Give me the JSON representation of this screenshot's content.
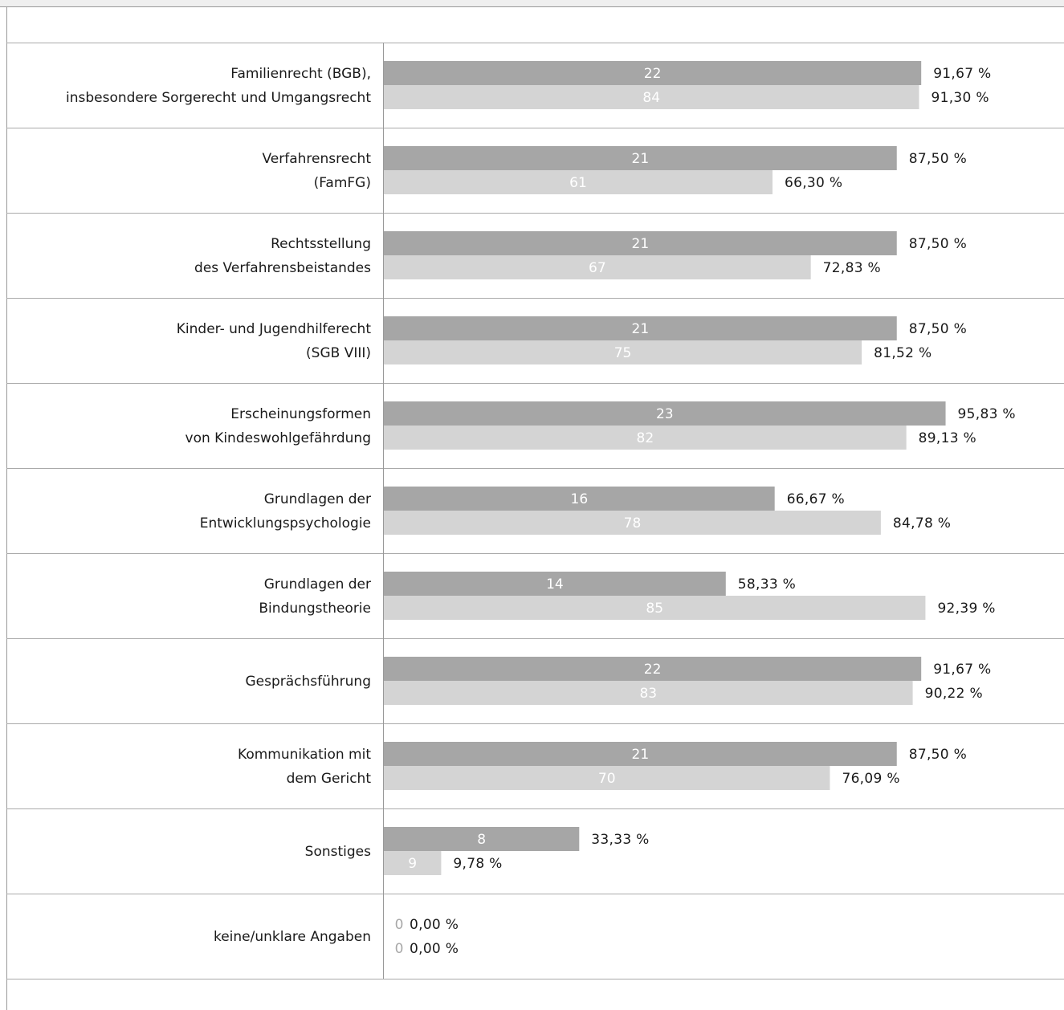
{
  "colors": {
    "series_1": "#a6a6a6",
    "series_2": "#d4d4d4",
    "frame_line": "#999999",
    "row_line": "#aaaaaa",
    "top_band": "#efefef"
  },
  "chart_data": {
    "type": "bar",
    "orientation": "horizontal",
    "title": "",
    "xlabel": "",
    "ylabel": "",
    "xlim": [
      0,
      100
    ],
    "grid": false,
    "legend": "none",
    "categories": [
      [
        "Familienrecht (BGB),",
        "insbesondere Sorgerecht und Umgangsrecht"
      ],
      [
        "Verfahrensrecht",
        "(FamFG)"
      ],
      [
        "Rechtsstellung",
        "des Verfahrensbeistandes"
      ],
      [
        "Kinder- und Jugendhilferecht",
        "(SGB VIII)"
      ],
      [
        "Erscheinungsformen",
        "von Kindeswohlgefährdung"
      ],
      [
        "Grundlagen der",
        "Entwicklungspsychologie"
      ],
      [
        "Grundlagen der",
        "Bindungstheorie"
      ],
      [
        "Gesprächsführung"
      ],
      [
        "Kommunikation mit",
        "dem Gericht"
      ],
      [
        "Sonstiges"
      ],
      [
        "keine/unklare Angaben"
      ]
    ],
    "series": [
      {
        "counts": [
          22,
          21,
          21,
          21,
          23,
          16,
          14,
          22,
          21,
          8,
          0
        ],
        "values": [
          91.67,
          87.5,
          87.5,
          87.5,
          95.83,
          66.67,
          58.33,
          91.67,
          87.5,
          33.33,
          0
        ],
        "value_labels": [
          "91,67 %",
          "87,50 %",
          "87,50 %",
          "87,50 %",
          "95,83 %",
          "66,67 %",
          "58,33 %",
          "91,67 %",
          "87,50 %",
          "33,33 %",
          "0,00 %"
        ]
      },
      {
        "counts": [
          84,
          61,
          67,
          75,
          82,
          78,
          85,
          83,
          70,
          9,
          0
        ],
        "values": [
          91.3,
          66.3,
          72.83,
          81.52,
          89.13,
          84.78,
          92.39,
          90.22,
          76.09,
          9.78,
          0
        ],
        "value_labels": [
          "91,30 %",
          "66,30 %",
          "72,83 %",
          "81,52 %",
          "89,13 %",
          "84,78 %",
          "92,39 %",
          "90,22 %",
          "76,09 %",
          "9,78 %",
          "0,00 %"
        ]
      }
    ]
  }
}
